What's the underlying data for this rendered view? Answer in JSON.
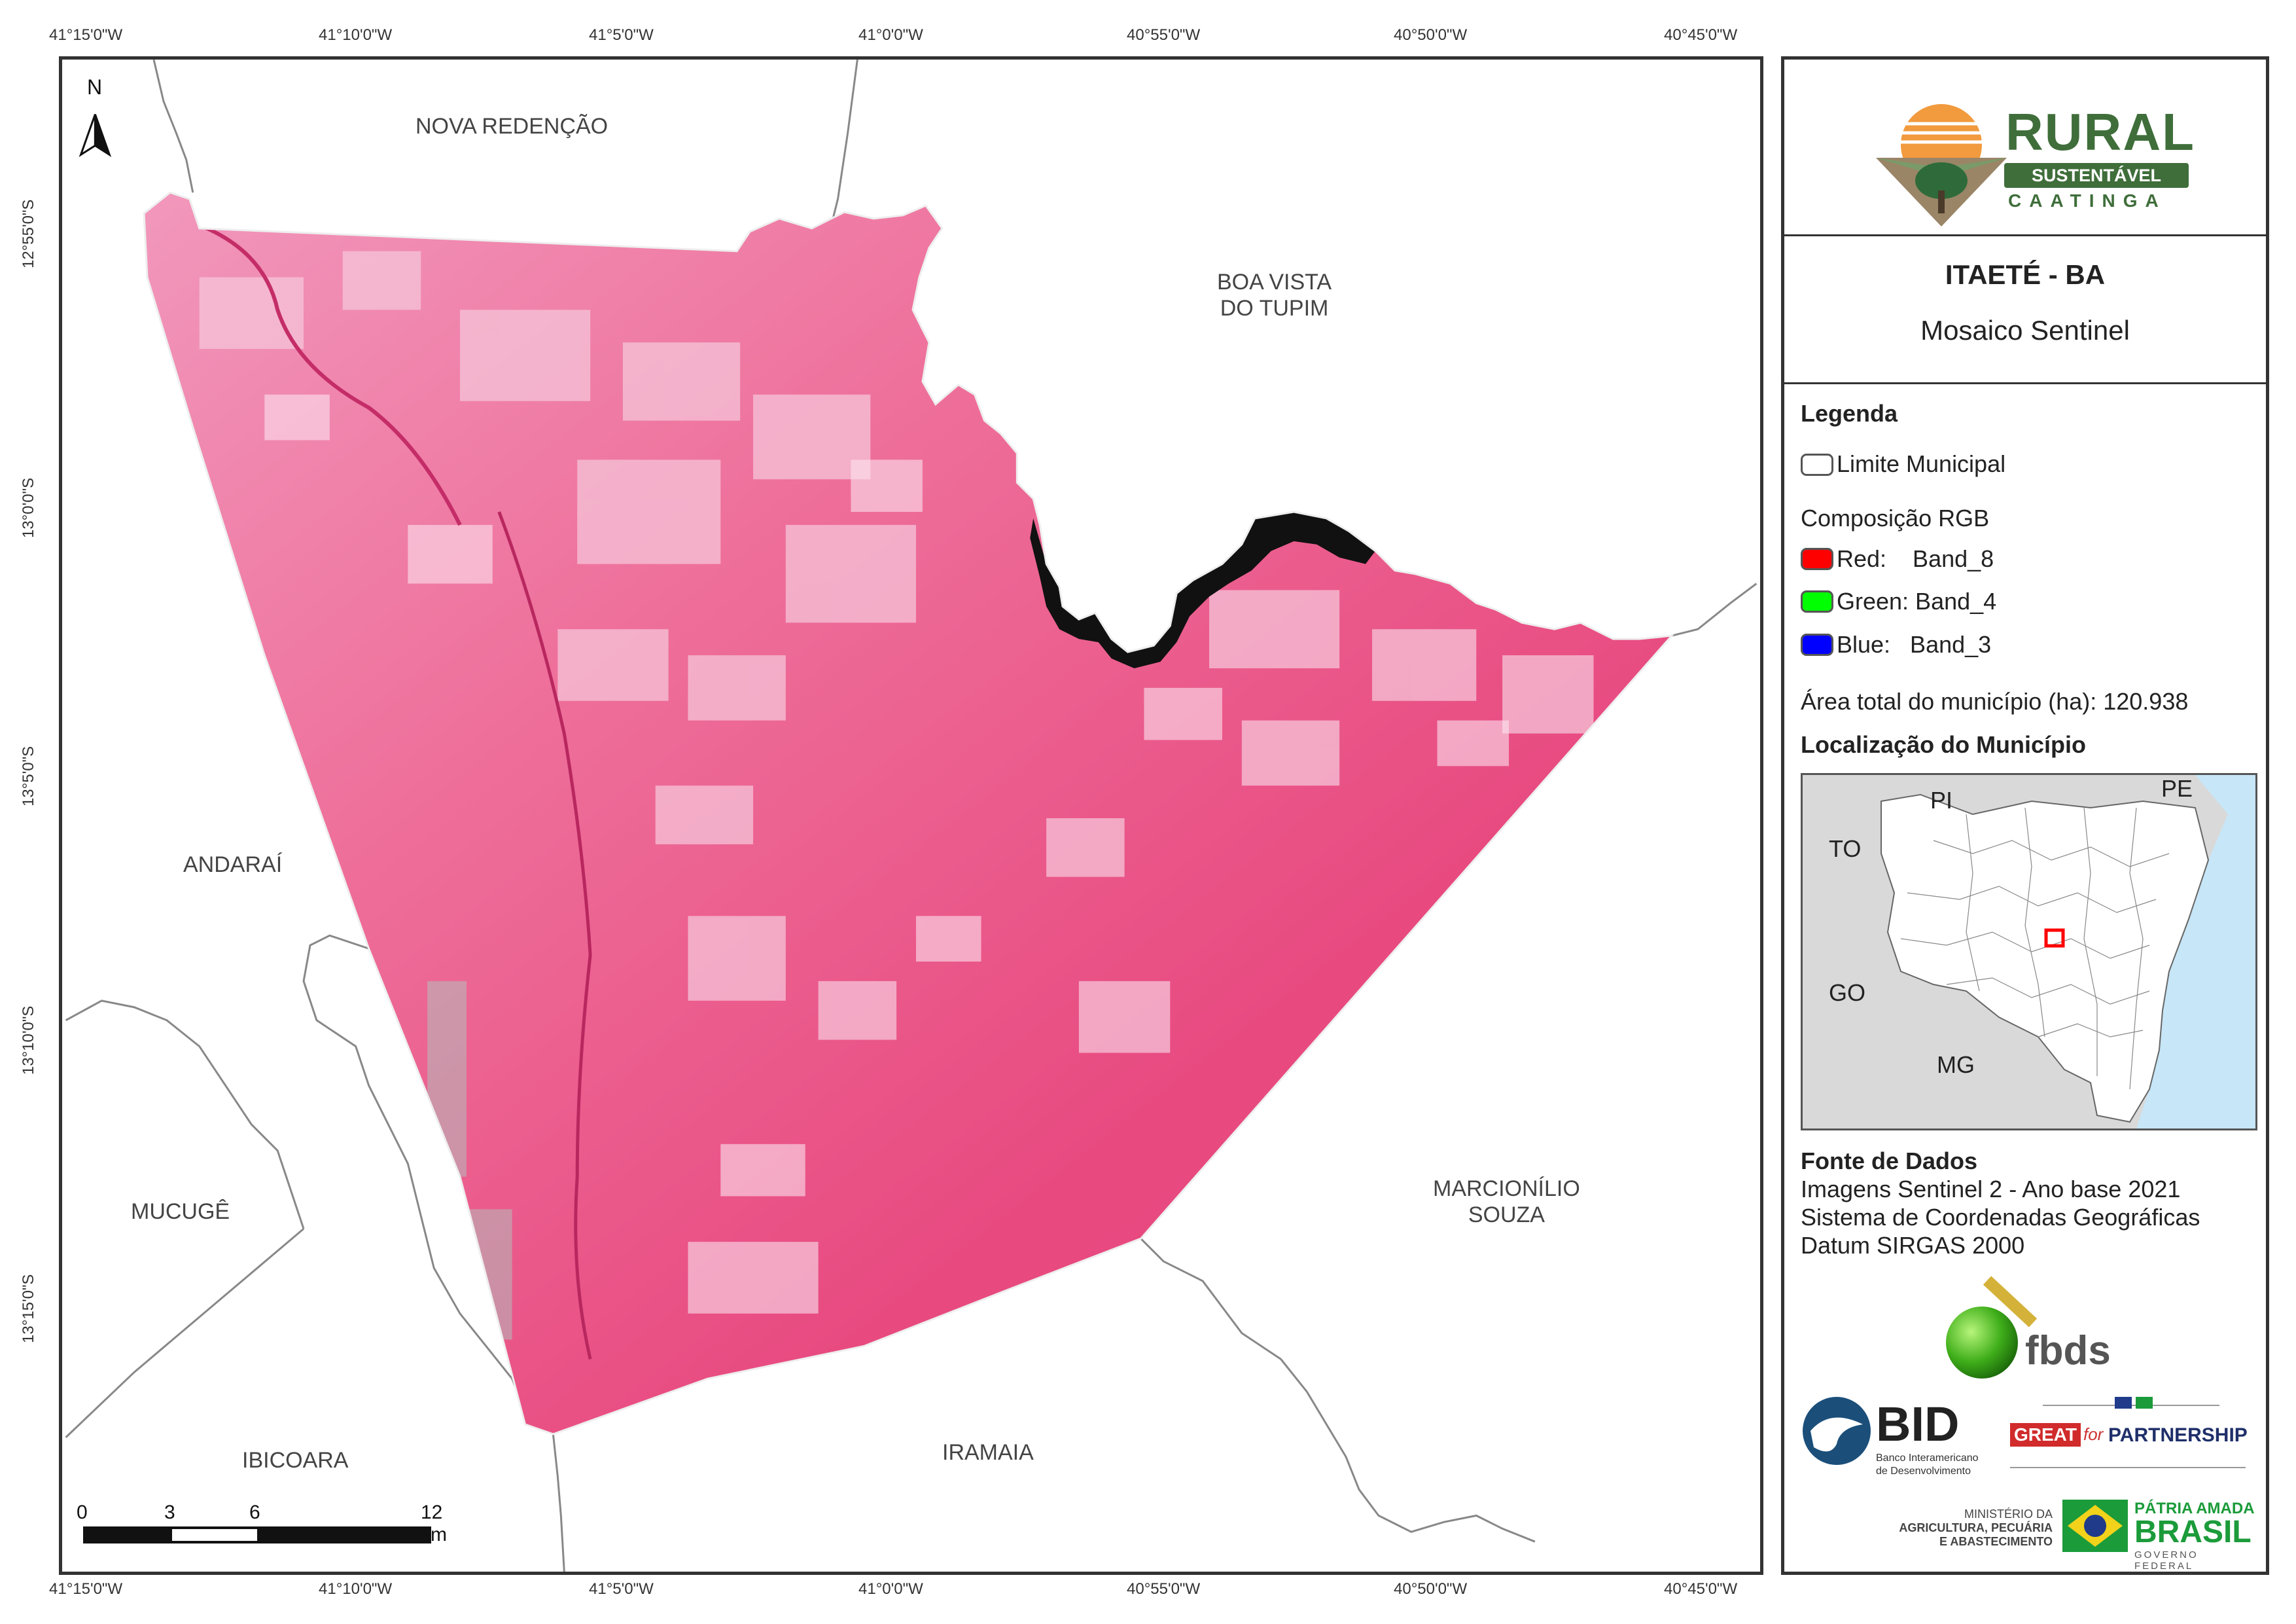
{
  "map": {
    "top_coords": [
      "41°15'0\"W",
      "41°10'0\"W",
      "41°5'0\"W",
      "41°0'0\"W",
      "40°55'0\"W",
      "40°50'0\"W",
      "40°45'0\"W"
    ],
    "bottom_coords": [
      "41°15'0\"W",
      "41°10'0\"W",
      "41°5'0\"W",
      "41°0'0\"W",
      "40°55'0\"W",
      "40°50'0\"W",
      "40°45'0\"W"
    ],
    "left_coords": [
      "12°55'0\"S",
      "13°0'0\"S",
      "13°5'0\"S",
      "13°10'0\"S",
      "13°15'0\"S"
    ],
    "north_label": "N",
    "places": {
      "nova_redencao": "NOVA REDENÇÃO",
      "boa_vista_1": "BOA VISTA",
      "boa_vista_2": "DO TUPIM",
      "andarai": "ANDARAÍ",
      "mucuge": "MUCUGÊ",
      "marcionilio_1": "MARCIONÍLIO",
      "marcionilio_2": "SOUZA",
      "ibicoara": "IBICOARA",
      "iramaia": "IRAMAIA"
    },
    "scale": {
      "labels": [
        "0",
        "3",
        "6",
        "12 km"
      ]
    },
    "colors": {
      "imagery": "#e94b82",
      "imagery_light": "#f5b8d0",
      "water": "#111111",
      "ocean": "#c7e6f7"
    }
  },
  "panel": {
    "logo": {
      "rural": "RURAL",
      "sustentavel": "SUSTENTÁVEL",
      "caatinga": "CAATINGA"
    },
    "title": "ITAETÉ - BA",
    "subtitle": "Mosaico Sentinel",
    "legend": {
      "heading": "Legenda",
      "limite": "Limite Municipal",
      "composicao": "Composição RGB",
      "red": "Red:    Band_8",
      "green": "Green: Band_4",
      "blue": "Blue:   Band_3",
      "area": "Área total do município (ha): 120.938",
      "localizacao": "Localização do Município"
    },
    "inset": {
      "states": [
        "PI",
        "PE",
        "TO",
        "GO",
        "MG"
      ]
    },
    "fonte": {
      "heading": "Fonte de Dados",
      "line1": "Imagens Sentinel 2 - Ano base 2021",
      "line2": "Sistema de Coordenadas Geográficas",
      "line3": "Datum SIRGAS 2000"
    },
    "sponsors": {
      "fbds": "fbds",
      "bid": "BID",
      "bid_sub1": "Banco Interamericano",
      "bid_sub2": "de Desenvolvimento",
      "great": "GREAT",
      "great_for": "for",
      "partnership": "PARTNERSHIP",
      "ministerio1": "MINISTÉRIO DA",
      "ministerio2": "AGRICULTURA, PECUÁRIA",
      "ministerio3": "E ABASTECIMENTO",
      "patria": "PÁTRIA AMADA",
      "brasil": "BRASIL",
      "governo": "GOVERNO FEDERAL"
    }
  }
}
